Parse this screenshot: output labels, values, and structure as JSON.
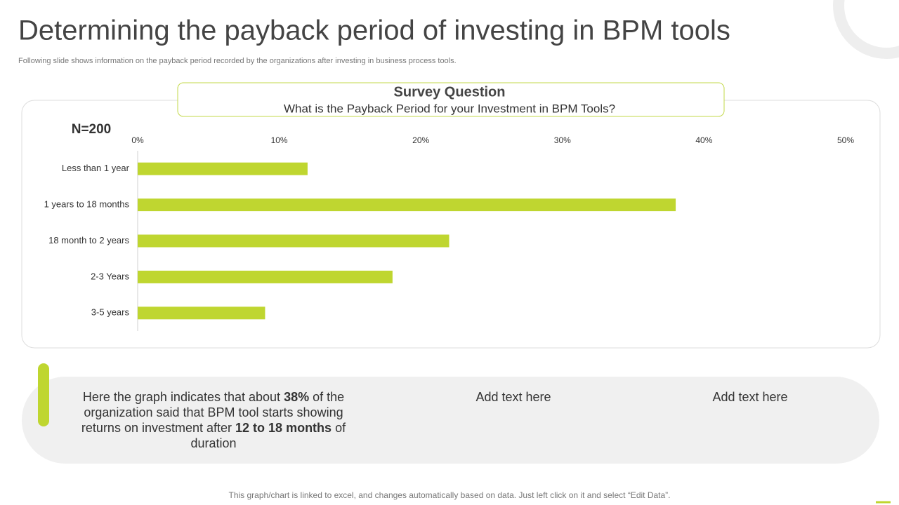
{
  "title": "Determining the payback period of investing in BPM tools",
  "subtitle": "Following slide shows information on the payback period recorded by the organizations after investing in business process tools.",
  "survey": {
    "heading": "Survey Question",
    "question": "What is the Payback Period for your Investment in BPM Tools?"
  },
  "chart_data": {
    "type": "bar",
    "orientation": "horizontal",
    "sample_label": "N=200",
    "categories": [
      "Less than 1 year",
      "1 years to 18 months",
      "18 month to 2 years",
      "2-3 Years",
      "3-5 years"
    ],
    "values": [
      12,
      38,
      22,
      18,
      9
    ],
    "color": "#bfd630",
    "xlim": [
      0,
      50
    ],
    "xticks": [
      {
        "value": 0,
        "label": "0%"
      },
      {
        "value": 10,
        "label": "10%"
      },
      {
        "value": 20,
        "label": "20%"
      },
      {
        "value": 30,
        "label": "30%"
      },
      {
        "value": 40,
        "label": "40%"
      },
      {
        "value": 50,
        "label": "50%"
      }
    ]
  },
  "insights": [
    {
      "parts": [
        {
          "text": "Here the graph indicates that about ",
          "bold": false
        },
        {
          "text": "38%",
          "bold": true
        },
        {
          "text": " of the organization said that BPM tool starts showing returns on investment after ",
          "bold": false
        },
        {
          "text": "12 to 18 months",
          "bold": true
        },
        {
          "text": " of duration",
          "bold": false
        }
      ]
    },
    {
      "parts": [
        {
          "text": "Add text here",
          "bold": false
        }
      ]
    },
    {
      "parts": [
        {
          "text": "Add text here",
          "bold": false
        }
      ]
    }
  ],
  "footer": "This graph/chart is linked to excel, and changes automatically based on data. Just left click on it and select “Edit Data”."
}
